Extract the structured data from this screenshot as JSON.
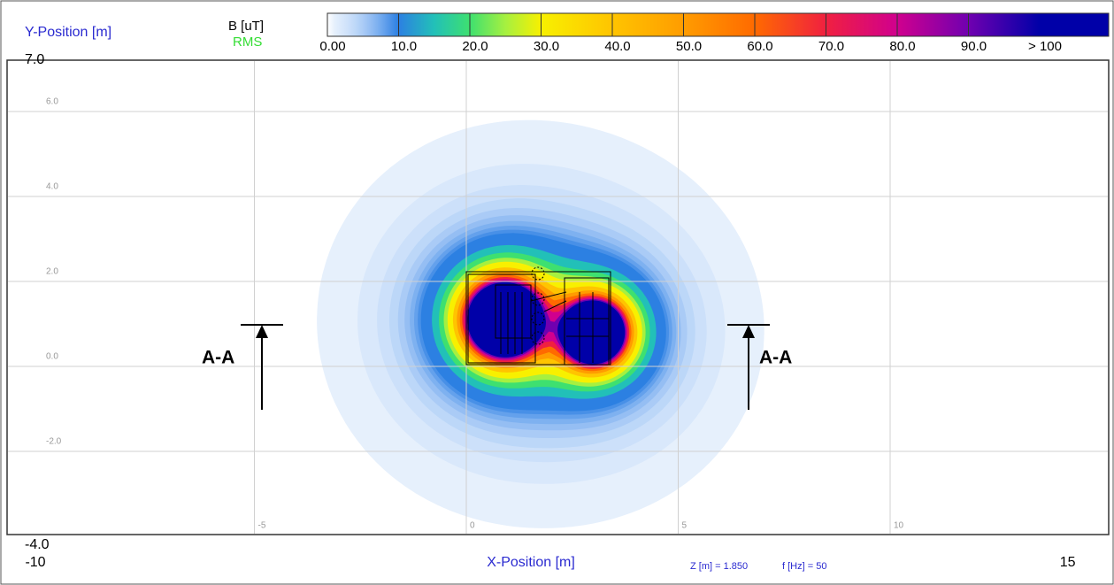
{
  "chart_data": {
    "type": "contour",
    "ylabel": "Y-Position [m]",
    "xlabel": "X-Position [m]",
    "quantity": "B [uT]",
    "mode": "RMS",
    "xlim": [
      -10,
      15
    ],
    "ylim": [
      -4,
      7
    ],
    "xticks": [
      -10,
      -5,
      0,
      5,
      10,
      15
    ],
    "yticks": [
      {
        "value": 7,
        "label": "7.0"
      },
      {
        "value": 6,
        "label": "6.0"
      },
      {
        "value": 4,
        "label": "4.0"
      },
      {
        "value": 2,
        "label": "2.0"
      },
      {
        "value": 0,
        "label": "0.0"
      },
      {
        "value": -2,
        "label": "-2.0"
      },
      {
        "value": -4,
        "label": "-4.0"
      }
    ],
    "grid": true,
    "colorbar_ticks": [
      {
        "value": 0,
        "label": "0.00"
      },
      {
        "value": 10,
        "label": "10.0"
      },
      {
        "value": 20,
        "label": "20.0"
      },
      {
        "value": 30,
        "label": "30.0"
      },
      {
        "value": 40,
        "label": "40.0"
      },
      {
        "value": 50,
        "label": "50.0"
      },
      {
        "value": 60,
        "label": "60.0"
      },
      {
        "value": 70,
        "label": "70.0"
      },
      {
        "value": 80,
        "label": "80.0"
      },
      {
        "value": 90,
        "label": "90.0"
      },
      {
        "value": 100,
        "label": "> 100"
      }
    ],
    "levels": [
      1,
      2,
      3,
      4,
      5,
      6,
      7,
      8,
      9,
      10,
      15,
      20,
      25,
      30,
      40,
      50,
      60,
      70,
      80,
      90,
      100
    ],
    "level_colors": [
      "#e6f0fc",
      "#d9e8fb",
      "#cce0fa",
      "#bcd7f8",
      "#aacbf6",
      "#95bef3",
      "#7eb1f0",
      "#64a1ec",
      "#4890e7",
      "#2c80e2",
      "#22c0b8",
      "#3ee070",
      "#a6f040",
      "#f8f000",
      "#ffc400",
      "#ff9c00",
      "#ff6a00",
      "#f02040",
      "#d0008e",
      "#7000b0",
      "#0000a8"
    ],
    "annotations": [
      "A-A",
      "A-A",
      "Z [m] = 1.850",
      "f [Hz] = 50"
    ]
  }
}
